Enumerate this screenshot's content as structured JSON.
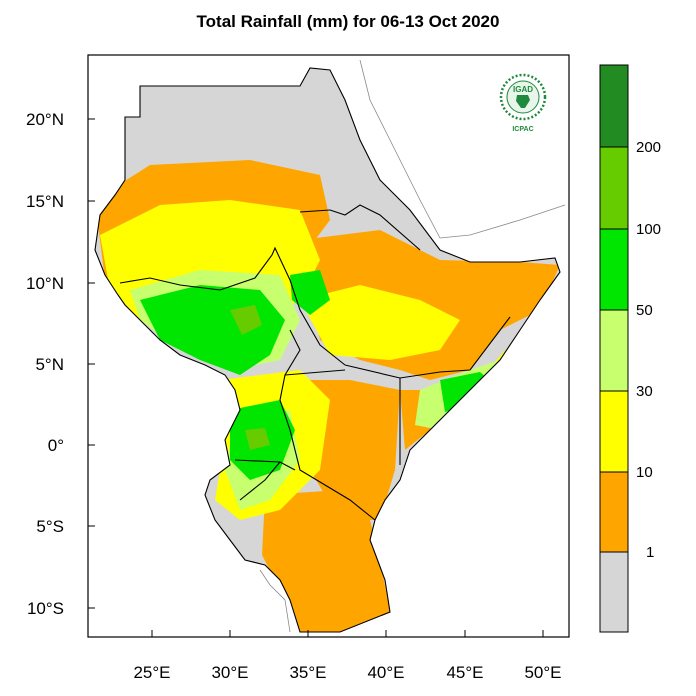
{
  "title": "Total Rainfall (mm) for 06-13 Oct 2020",
  "map": {
    "lon_range": [
      22,
      52
    ],
    "lat_range": [
      -11.5,
      24
    ],
    "lon_ticks": [
      "25°E",
      "30°E",
      "35°E",
      "40°E",
      "45°E",
      "50°E"
    ],
    "lat_ticks": [
      "20°N",
      "15°N",
      "10°N",
      "5°N",
      "0°",
      "5°S",
      "10°S"
    ],
    "no_data_color": "#d6d6d6",
    "ocean_color": "#ffffff",
    "border_color": "#000000"
  },
  "logo": {
    "top_text": "IGAD",
    "bottom_text": "ICPAC",
    "color": "#1f8a3c"
  },
  "colorbar": {
    "levels": [
      "200",
      "100",
      "50",
      "30",
      "10",
      "1"
    ],
    "colors": [
      "#d6d6d6",
      "#ffa500",
      "#ffff00",
      "#c8ff6e",
      "#00e600",
      "#66cc00",
      "#228b22"
    ]
  }
}
